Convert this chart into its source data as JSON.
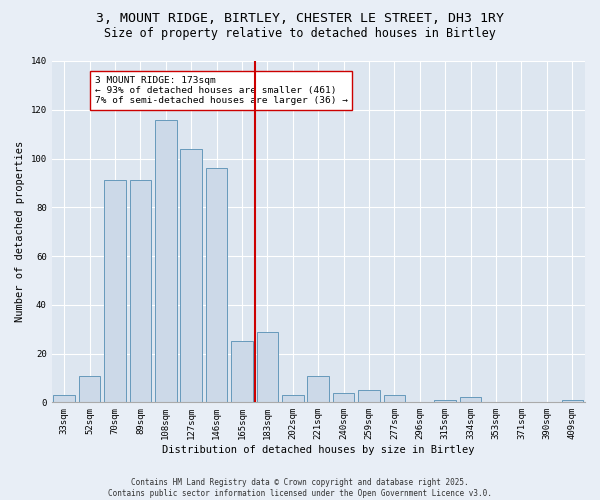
{
  "title1": "3, MOUNT RIDGE, BIRTLEY, CHESTER LE STREET, DH3 1RY",
  "title2": "Size of property relative to detached houses in Birtley",
  "xlabel": "Distribution of detached houses by size in Birtley",
  "ylabel": "Number of detached properties",
  "categories": [
    "33sqm",
    "52sqm",
    "70sqm",
    "89sqm",
    "108sqm",
    "127sqm",
    "146sqm",
    "165sqm",
    "183sqm",
    "202sqm",
    "221sqm",
    "240sqm",
    "259sqm",
    "277sqm",
    "296sqm",
    "315sqm",
    "334sqm",
    "353sqm",
    "371sqm",
    "390sqm",
    "409sqm"
  ],
  "values": [
    3,
    11,
    91,
    91,
    116,
    104,
    96,
    25,
    29,
    3,
    11,
    4,
    5,
    3,
    0,
    1,
    2,
    0,
    0,
    0,
    1
  ],
  "bar_color": "#ccd9e8",
  "bar_edge_color": "#6699bb",
  "vline_color": "#cc0000",
  "annotation_text": "3 MOUNT RIDGE: 173sqm\n← 93% of detached houses are smaller (461)\n7% of semi-detached houses are larger (36) →",
  "annotation_box_color": "#ffffff",
  "annotation_box_edge": "#cc0000",
  "ylim": [
    0,
    140
  ],
  "yticks": [
    0,
    20,
    40,
    60,
    80,
    100,
    120,
    140
  ],
  "background_color": "#dde6f0",
  "fig_background_color": "#e8eef6",
  "grid_color": "#ffffff",
  "footer": "Contains HM Land Registry data © Crown copyright and database right 2025.\nContains public sector information licensed under the Open Government Licence v3.0.",
  "title1_fontsize": 9.5,
  "title2_fontsize": 8.5,
  "tick_fontsize": 6.5,
  "ylabel_fontsize": 7.5,
  "xlabel_fontsize": 7.5,
  "annotation_fontsize": 6.8,
  "footer_fontsize": 5.5
}
